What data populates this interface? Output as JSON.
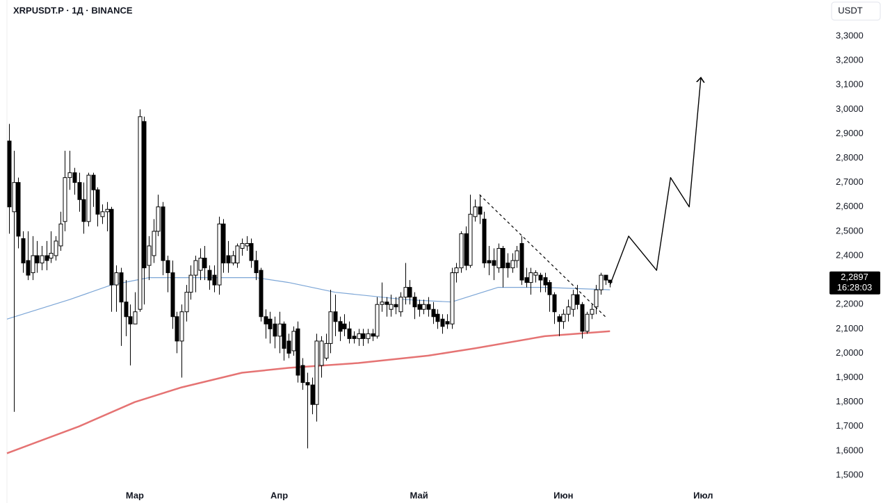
{
  "chart_data": {
    "type": "candlestick",
    "title": "XRPUSDT.P · 1Д · BINANCE",
    "currency": "USDT",
    "up_color": "#ffffff",
    "down_color": "#000000",
    "x": [
      0,
      1,
      2,
      3,
      4,
      5,
      6,
      7,
      8,
      9,
      10,
      11,
      12,
      13,
      14,
      15,
      16,
      17,
      18,
      19,
      20,
      21,
      22,
      23,
      24,
      25,
      26,
      27,
      28,
      29,
      30,
      31,
      32,
      33,
      34,
      35,
      36,
      37,
      38,
      39,
      40,
      41,
      42,
      43,
      44,
      45,
      46,
      47,
      48,
      49,
      50,
      51,
      52,
      53,
      54,
      55,
      56,
      57,
      58,
      59,
      60,
      61,
      62,
      63,
      64,
      65,
      66,
      67,
      68,
      69,
      70,
      71,
      72,
      73,
      74,
      75,
      76,
      77,
      78,
      79,
      80,
      81,
      82,
      83,
      84,
      85,
      86,
      87,
      88,
      89,
      90,
      91,
      92,
      93,
      94,
      95,
      96,
      97,
      98,
      99,
      100,
      101,
      102,
      103,
      104,
      105,
      106,
      107,
      108,
      109,
      110,
      111,
      112,
      113,
      114,
      115,
      116,
      117,
      118,
      119,
      120,
      121,
      122,
      123,
      124,
      125,
      126,
      127,
      128,
      129
    ],
    "open": [
      2.87,
      2.58,
      2.7,
      2.47,
      2.38,
      2.33,
      2.4,
      2.37,
      2.4,
      2.39,
      2.4,
      2.44,
      2.54,
      2.72,
      2.74,
      2.7,
      2.63,
      2.54,
      2.73,
      2.67,
      2.56,
      2.58,
      2.59,
      2.28,
      2.33,
      2.21,
      2.15,
      2.12,
      2.18,
      2.95,
      2.36,
      2.4,
      2.5,
      2.6,
      2.38,
      2.33,
      2.15,
      2.05,
      2.17,
      2.25,
      2.32,
      2.34,
      2.39,
      2.34,
      2.32,
      2.28,
      2.53,
      2.4,
      2.37,
      2.37,
      2.43,
      2.44,
      2.45,
      2.38,
      2.34,
      2.15,
      2.14,
      2.12,
      2.07,
      2.12,
      2.05,
      2.01,
      2.1,
      1.95,
      1.88,
      1.87,
      1.79,
      1.95,
      1.98,
      2.04,
      2.17,
      2.13,
      2.12,
      2.1,
      2.07,
      2.06,
      2.08,
      2.06,
      2.08,
      2.07,
      2.2,
      2.21,
      2.18,
      2.2,
      2.17,
      2.23,
      2.27,
      2.23,
      2.2,
      2.18,
      2.2,
      2.18,
      2.16,
      2.14,
      2.13,
      2.12,
      2.33,
      2.35,
      2.49,
      2.36,
      2.56,
      2.6,
      2.55,
      2.38,
      2.38,
      2.35,
      2.43,
      2.37,
      2.35,
      2.38,
      2.45,
      2.31,
      2.29,
      2.32,
      2.32,
      2.31,
      2.29,
      2.24,
      2.15,
      2.13,
      2.16,
      2.18,
      2.24,
      2.2,
      2.09,
      2.16,
      2.19,
      2.26,
      2.32,
      2.3
    ],
    "high": [
      2.94,
      2.83,
      2.72,
      2.5,
      2.5,
      2.48,
      2.46,
      2.44,
      2.46,
      2.5,
      2.48,
      2.58,
      2.83,
      2.83,
      2.76,
      2.74,
      2.7,
      2.74,
      2.74,
      2.68,
      2.61,
      2.62,
      2.6,
      2.36,
      2.35,
      2.3,
      2.2,
      2.25,
      3.0,
      2.97,
      2.48,
      2.55,
      2.65,
      2.62,
      2.4,
      2.38,
      2.17,
      2.2,
      2.28,
      2.36,
      2.4,
      2.43,
      2.44,
      2.36,
      2.36,
      2.56,
      2.55,
      2.46,
      2.42,
      2.45,
      2.47,
      2.48,
      2.47,
      2.42,
      2.35,
      2.18,
      2.17,
      2.15,
      2.17,
      2.13,
      2.08,
      2.11,
      2.13,
      1.98,
      1.92,
      1.9,
      2.08,
      2.07,
      2.08,
      2.26,
      2.24,
      2.15,
      2.16,
      2.13,
      2.09,
      2.1,
      2.1,
      2.1,
      2.1,
      2.23,
      2.29,
      2.23,
      2.24,
      2.23,
      2.25,
      2.37,
      2.3,
      2.25,
      2.22,
      2.22,
      2.23,
      2.21,
      2.18,
      2.16,
      2.16,
      2.35,
      2.37,
      2.5,
      2.52,
      2.65,
      2.63,
      2.65,
      2.58,
      2.44,
      2.43,
      2.45,
      2.44,
      2.41,
      2.41,
      2.44,
      2.48,
      2.35,
      2.35,
      2.34,
      2.33,
      2.33,
      2.3,
      2.25,
      2.16,
      2.18,
      2.22,
      2.26,
      2.28,
      2.21,
      2.17,
      2.2,
      2.28,
      2.33,
      2.32,
      2.3
    ],
    "low": [
      2.49,
      1.76,
      2.43,
      2.33,
      2.3,
      2.3,
      2.33,
      2.34,
      2.34,
      2.37,
      2.38,
      2.42,
      2.5,
      2.67,
      2.65,
      2.58,
      2.49,
      2.52,
      2.6,
      2.52,
      2.53,
      2.5,
      2.17,
      2.17,
      2.03,
      2.07,
      1.95,
      2.12,
      2.17,
      2.2,
      2.3,
      2.37,
      2.48,
      2.32,
      2.25,
      2.1,
      2.0,
      1.9,
      2.13,
      2.22,
      2.25,
      2.3,
      2.3,
      2.26,
      2.25,
      2.24,
      2.33,
      2.33,
      2.36,
      2.35,
      2.4,
      2.42,
      2.35,
      2.3,
      2.13,
      2.06,
      2.04,
      2.02,
      2.0,
      1.97,
      1.98,
      1.99,
      1.88,
      1.85,
      1.61,
      1.75,
      1.72,
      1.9,
      1.97,
      2.0,
      2.07,
      2.05,
      2.07,
      2.04,
      2.04,
      2.03,
      2.03,
      2.04,
      2.05,
      2.06,
      2.17,
      2.15,
      2.15,
      2.16,
      2.15,
      2.2,
      2.2,
      2.14,
      2.15,
      2.16,
      2.15,
      2.12,
      2.1,
      2.08,
      2.1,
      2.1,
      2.29,
      2.33,
      2.34,
      2.35,
      2.54,
      2.53,
      2.35,
      2.32,
      2.3,
      2.33,
      2.27,
      2.31,
      2.33,
      2.35,
      2.28,
      2.27,
      2.24,
      2.29,
      2.25,
      2.25,
      2.17,
      2.12,
      2.07,
      2.1,
      2.13,
      2.15,
      2.18,
      2.06,
      2.08,
      2.14,
      2.16,
      2.24,
      2.28,
      2.27
    ],
    "close": [
      2.6,
      2.7,
      2.48,
      2.37,
      2.32,
      2.4,
      2.37,
      2.4,
      2.38,
      2.41,
      2.46,
      2.53,
      2.72,
      2.74,
      2.7,
      2.63,
      2.54,
      2.73,
      2.67,
      2.57,
      2.58,
      2.59,
      2.28,
      2.33,
      2.21,
      2.15,
      2.12,
      2.17,
      2.97,
      2.35,
      2.44,
      2.5,
      2.6,
      2.38,
      2.33,
      2.15,
      2.05,
      2.17,
      2.25,
      2.32,
      2.38,
      2.39,
      2.35,
      2.3,
      2.28,
      2.53,
      2.37,
      2.37,
      2.4,
      2.44,
      2.45,
      2.45,
      2.38,
      2.33,
      2.15,
      2.12,
      2.1,
      2.07,
      2.12,
      2.02,
      2.0,
      2.09,
      1.91,
      1.88,
      1.87,
      1.79,
      2.05,
      2.05,
      2.04,
      2.17,
      2.13,
      2.09,
      2.1,
      2.06,
      2.06,
      2.08,
      2.06,
      2.08,
      2.07,
      2.2,
      2.21,
      2.2,
      2.2,
      2.19,
      2.23,
      2.27,
      2.23,
      2.19,
      2.18,
      2.2,
      2.18,
      2.15,
      2.13,
      2.11,
      2.12,
      2.33,
      2.35,
      2.49,
      2.36,
      2.57,
      2.6,
      2.57,
      2.37,
      2.37,
      2.36,
      2.43,
      2.35,
      2.35,
      2.38,
      2.42,
      2.3,
      2.29,
      2.33,
      2.33,
      2.3,
      2.28,
      2.24,
      2.17,
      2.13,
      2.16,
      2.19,
      2.24,
      2.2,
      2.09,
      2.16,
      2.18,
      2.26,
      2.32,
      2.3,
      2.2897
    ],
    "lines": [
      {
        "color": "#7ba5d6",
        "width": 1.2,
        "x": [
          -0.45,
          13,
          22,
          30,
          45,
          53,
          60,
          70,
          85,
          95,
          105,
          115,
          129
        ],
        "values": [
          2.14,
          2.22,
          2.28,
          2.31,
          2.31,
          2.31,
          2.29,
          2.25,
          2.22,
          2.21,
          2.27,
          2.27,
          2.26
        ]
      },
      {
        "color": "#e57373",
        "width": 2.5,
        "x": [
          -0.45,
          15,
          27,
          37,
          50,
          60,
          75,
          90,
          100,
          115,
          129
        ],
        "values": [
          1.59,
          1.7,
          1.8,
          1.86,
          1.92,
          1.94,
          1.96,
          1.99,
          2.02,
          2.07,
          2.09
        ]
      }
    ],
    "trendline": {
      "color": "#000000",
      "x": [
        101,
        128
      ],
      "values": [
        2.65,
        2.15
      ]
    },
    "projection": {
      "color": "#000000",
      "x": [
        129,
        133,
        139,
        142,
        146,
        148.5
      ],
      "values": [
        2.28,
        2.48,
        2.34,
        2.72,
        2.6,
        3.13
      ]
    },
    "last_price": {
      "value": 2.2897,
      "label": "2,2897"
    },
    "countdown": "16:28:03",
    "xlim": [
      -0.45,
      175.67
    ],
    "ylim": [
      1.4544,
      3.4481
    ],
    "xticks": [
      {
        "value": 27,
        "label": "Мар"
      },
      {
        "value": 58,
        "label": "Апр"
      },
      {
        "value": 88,
        "label": "Май"
      },
      {
        "value": 119,
        "label": "Июн"
      },
      {
        "value": 149,
        "label": "Июл"
      }
    ],
    "yticks": [
      {
        "value": 3.3,
        "label": "3,3000"
      },
      {
        "value": 3.2,
        "label": "3,2000"
      },
      {
        "value": 3.1,
        "label": "3,1000"
      },
      {
        "value": 3.0,
        "label": "3,0000"
      },
      {
        "value": 2.9,
        "label": "2,9000"
      },
      {
        "value": 2.8,
        "label": "2,8000"
      },
      {
        "value": 2.7,
        "label": "2,7000"
      },
      {
        "value": 2.6,
        "label": "2,6000"
      },
      {
        "value": 2.5,
        "label": "2,5000"
      },
      {
        "value": 2.4,
        "label": "2,4000"
      },
      {
        "value": 2.3,
        "label": "2,3000"
      },
      {
        "value": 2.2,
        "label": "2,2000"
      },
      {
        "value": 2.1,
        "label": "2,1000"
      },
      {
        "value": 2.0,
        "label": "2,0000"
      },
      {
        "value": 1.9,
        "label": "1,9000"
      },
      {
        "value": 1.8,
        "label": "1,8000"
      },
      {
        "value": 1.7,
        "label": "1,7000"
      },
      {
        "value": 1.6,
        "label": "1,6000"
      },
      {
        "value": 1.5,
        "label": "1,5000"
      }
    ]
  }
}
